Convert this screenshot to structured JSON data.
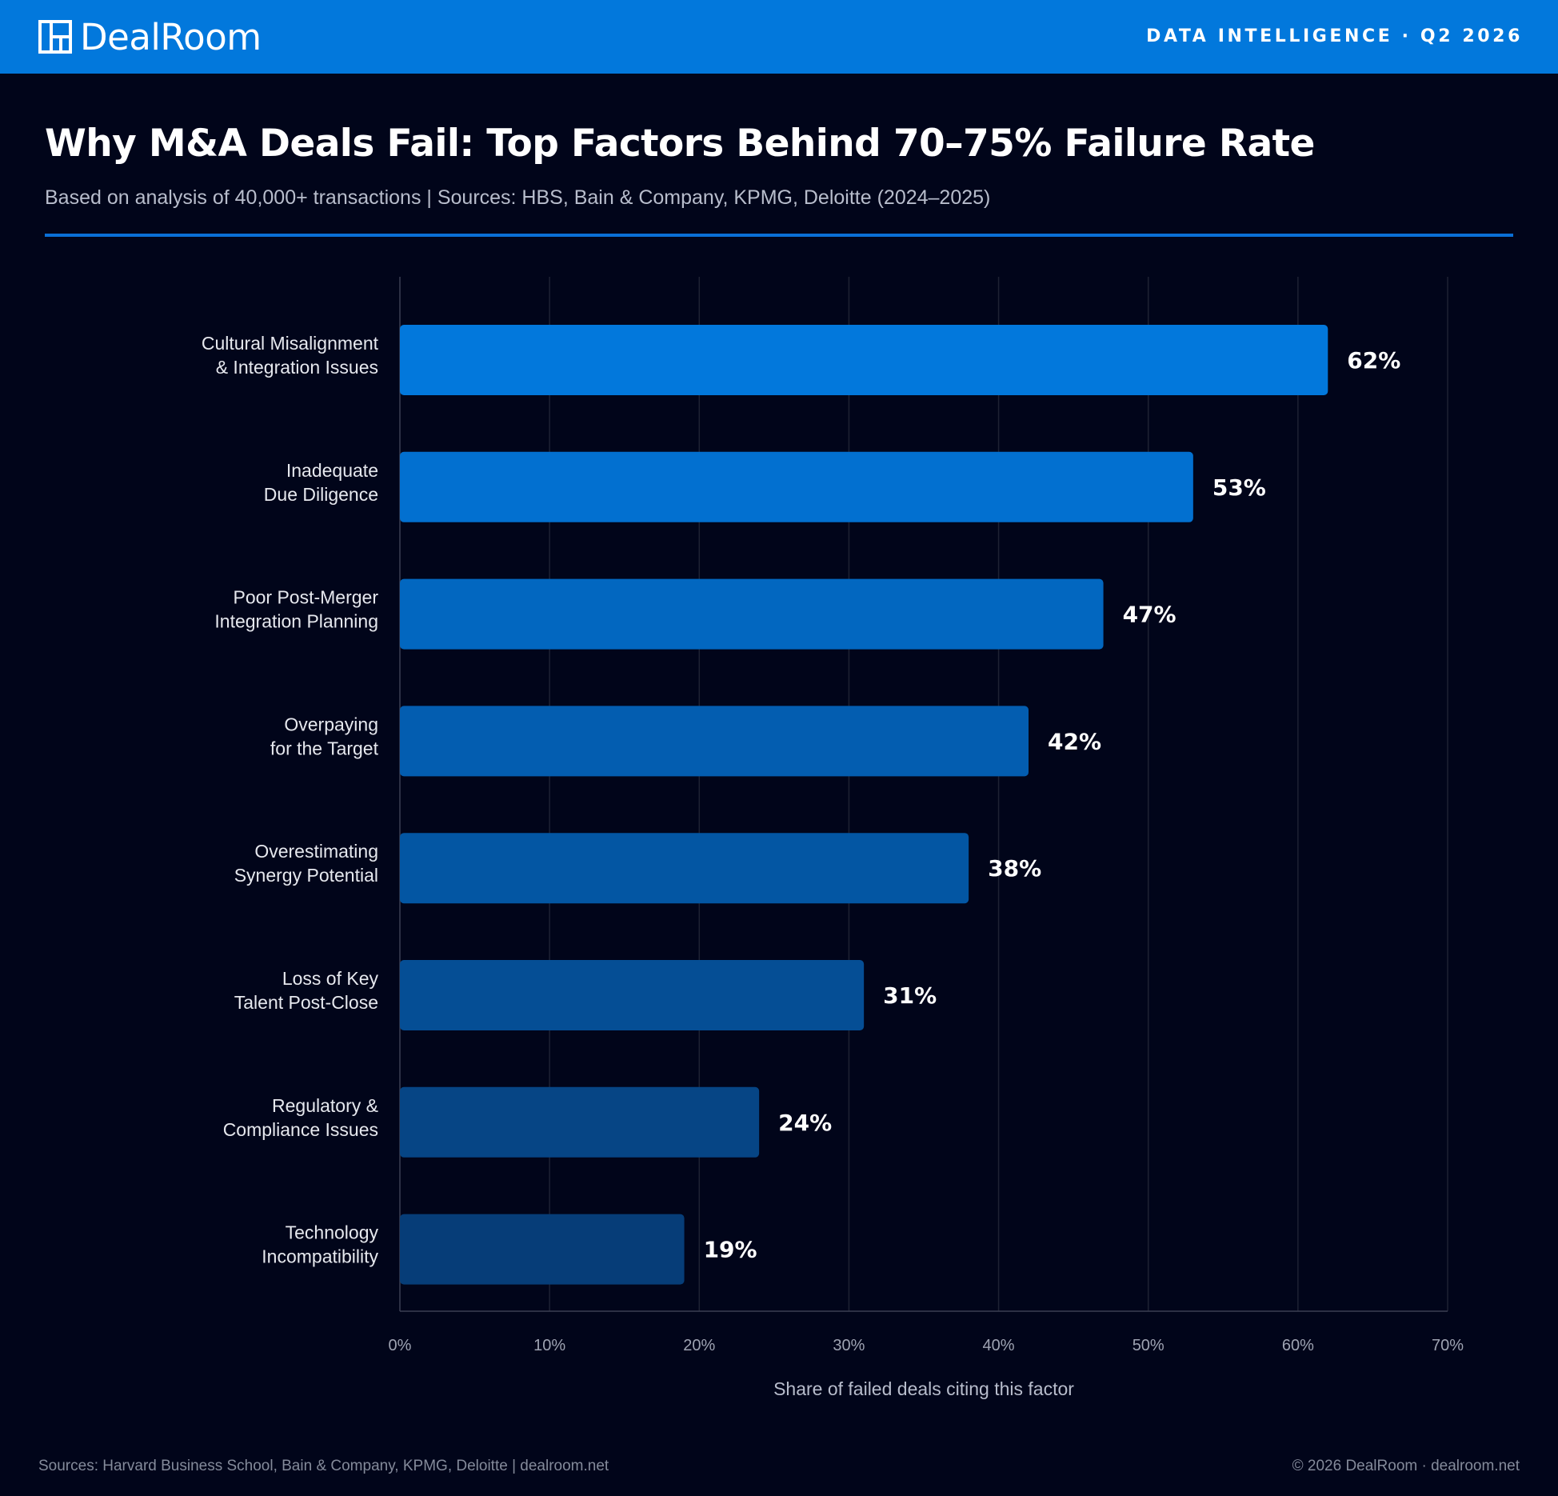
{
  "header": {
    "brand": "DealRoom",
    "logo_icon": "grid-building-icon",
    "tagline": "DATA INTELLIGENCE · Q2 2026"
  },
  "title": "Why M&A Deals Fail: Top Factors Behind 70–75% Failure Rate",
  "subtitle": "Based on analysis of 40,000+ transactions | Sources: HBS, Bain & Company, KPMG, Deloitte (2024–2025)",
  "chart_data": {
    "type": "bar",
    "orientation": "horizontal",
    "categories": [
      [
        "Cultural Misalignment",
        "& Integration Issues"
      ],
      [
        "Inadequate",
        "Due Diligence"
      ],
      [
        "Poor Post-Merger",
        "Integration Planning"
      ],
      [
        "Overpaying",
        "for the Target"
      ],
      [
        "Overestimating",
        "Synergy Potential"
      ],
      [
        "Loss of Key",
        "Talent Post-Close"
      ],
      [
        "Regulatory &",
        "Compliance Issues"
      ],
      [
        "Technology",
        "Incompatibility"
      ]
    ],
    "values": [
      62,
      53,
      47,
      42,
      38,
      31,
      24,
      19
    ],
    "value_labels": [
      "62%",
      "53%",
      "47%",
      "42%",
      "38%",
      "31%",
      "24%",
      "19%"
    ],
    "bar_colors": [
      "#0278dc",
      "#0270d0",
      "#0267c0",
      "#035db0",
      "#0356a3",
      "#054e95",
      "#064585",
      "#063d78"
    ],
    "xlim": [
      0,
      70
    ],
    "xticks": [
      0,
      10,
      20,
      30,
      40,
      50,
      60,
      70
    ],
    "xtick_labels": [
      "0%",
      "10%",
      "20%",
      "30%",
      "40%",
      "50%",
      "60%",
      "70%"
    ],
    "xlabel": "Share of failed deals citing this factor",
    "ylabel": "",
    "grid": true
  },
  "footer": {
    "left": "Sources: Harvard Business School, Bain & Company, KPMG, Deloitte | dealroom.net",
    "right": "© 2026 DealRoom · dealroom.net"
  },
  "colors": {
    "brand_blue": "#0278dc",
    "background": "#01051a"
  }
}
